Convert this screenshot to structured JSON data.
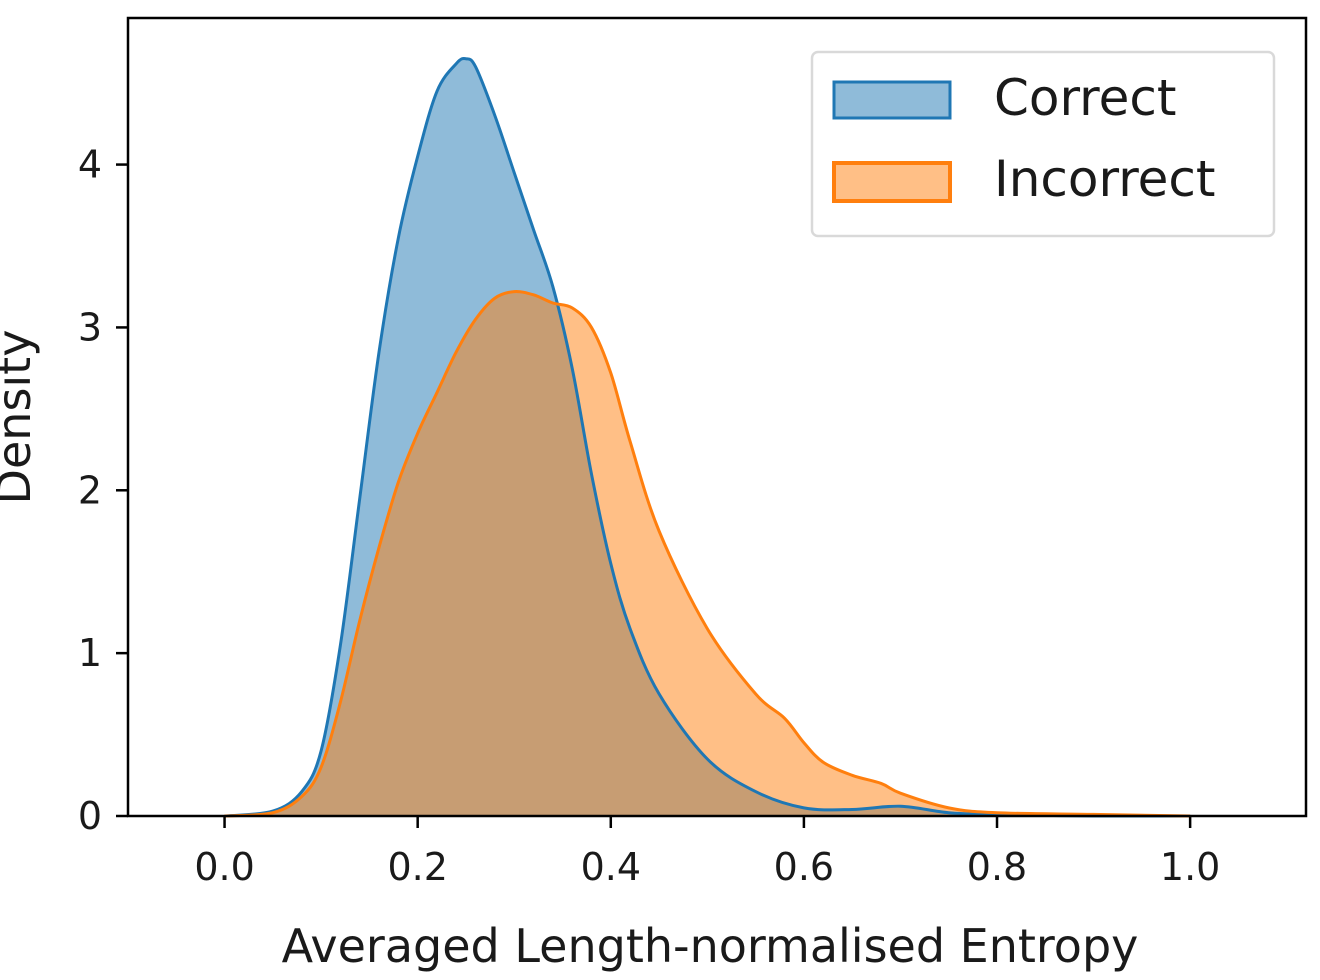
{
  "chart_data": {
    "type": "area",
    "title": "",
    "xlabel": "Averaged Length-normalised Entropy",
    "ylabel": "Density",
    "xlim": [
      -0.1,
      1.12
    ],
    "ylim": [
      0,
      4.9
    ],
    "xticks": [
      0.0,
      0.2,
      0.4,
      0.6,
      0.8,
      1.0
    ],
    "xtick_labels": [
      "0.0",
      "0.2",
      "0.4",
      "0.6",
      "0.8",
      "1.0"
    ],
    "yticks": [
      0,
      1,
      2,
      3,
      4
    ],
    "ytick_labels": [
      "0",
      "1",
      "2",
      "3",
      "4"
    ],
    "grid": false,
    "legend_position": "top-right",
    "series": [
      {
        "name": "Correct",
        "color": "#1f77b4",
        "fill_opacity": 0.5,
        "x": [
          0.0,
          0.05,
          0.08,
          0.1,
          0.12,
          0.14,
          0.16,
          0.18,
          0.2,
          0.22,
          0.24,
          0.25,
          0.26,
          0.28,
          0.3,
          0.32,
          0.34,
          0.36,
          0.38,
          0.4,
          0.42,
          0.45,
          0.5,
          0.55,
          0.6,
          0.65,
          0.7,
          0.75,
          0.8,
          0.9,
          1.0
        ],
        "y": [
          0.0,
          0.03,
          0.15,
          0.4,
          1.05,
          1.95,
          2.85,
          3.55,
          4.05,
          4.45,
          4.62,
          4.65,
          4.6,
          4.3,
          3.95,
          3.6,
          3.25,
          2.75,
          2.1,
          1.55,
          1.15,
          0.75,
          0.35,
          0.15,
          0.05,
          0.04,
          0.06,
          0.02,
          0.01,
          0.0,
          0.0
        ]
      },
      {
        "name": "Incorrect",
        "color": "#ff7f0e",
        "fill_opacity": 0.5,
        "x": [
          0.0,
          0.05,
          0.08,
          0.1,
          0.12,
          0.14,
          0.16,
          0.18,
          0.2,
          0.22,
          0.24,
          0.26,
          0.28,
          0.3,
          0.32,
          0.34,
          0.36,
          0.38,
          0.4,
          0.42,
          0.45,
          0.5,
          0.55,
          0.58,
          0.6,
          0.62,
          0.65,
          0.68,
          0.7,
          0.75,
          0.8,
          0.9,
          1.0
        ],
        "y": [
          0.0,
          0.02,
          0.12,
          0.3,
          0.7,
          1.2,
          1.65,
          2.05,
          2.35,
          2.6,
          2.85,
          3.05,
          3.18,
          3.22,
          3.2,
          3.15,
          3.12,
          3.0,
          2.72,
          2.3,
          1.75,
          1.15,
          0.75,
          0.6,
          0.45,
          0.33,
          0.25,
          0.2,
          0.14,
          0.05,
          0.02,
          0.01,
          0.0
        ]
      }
    ]
  }
}
